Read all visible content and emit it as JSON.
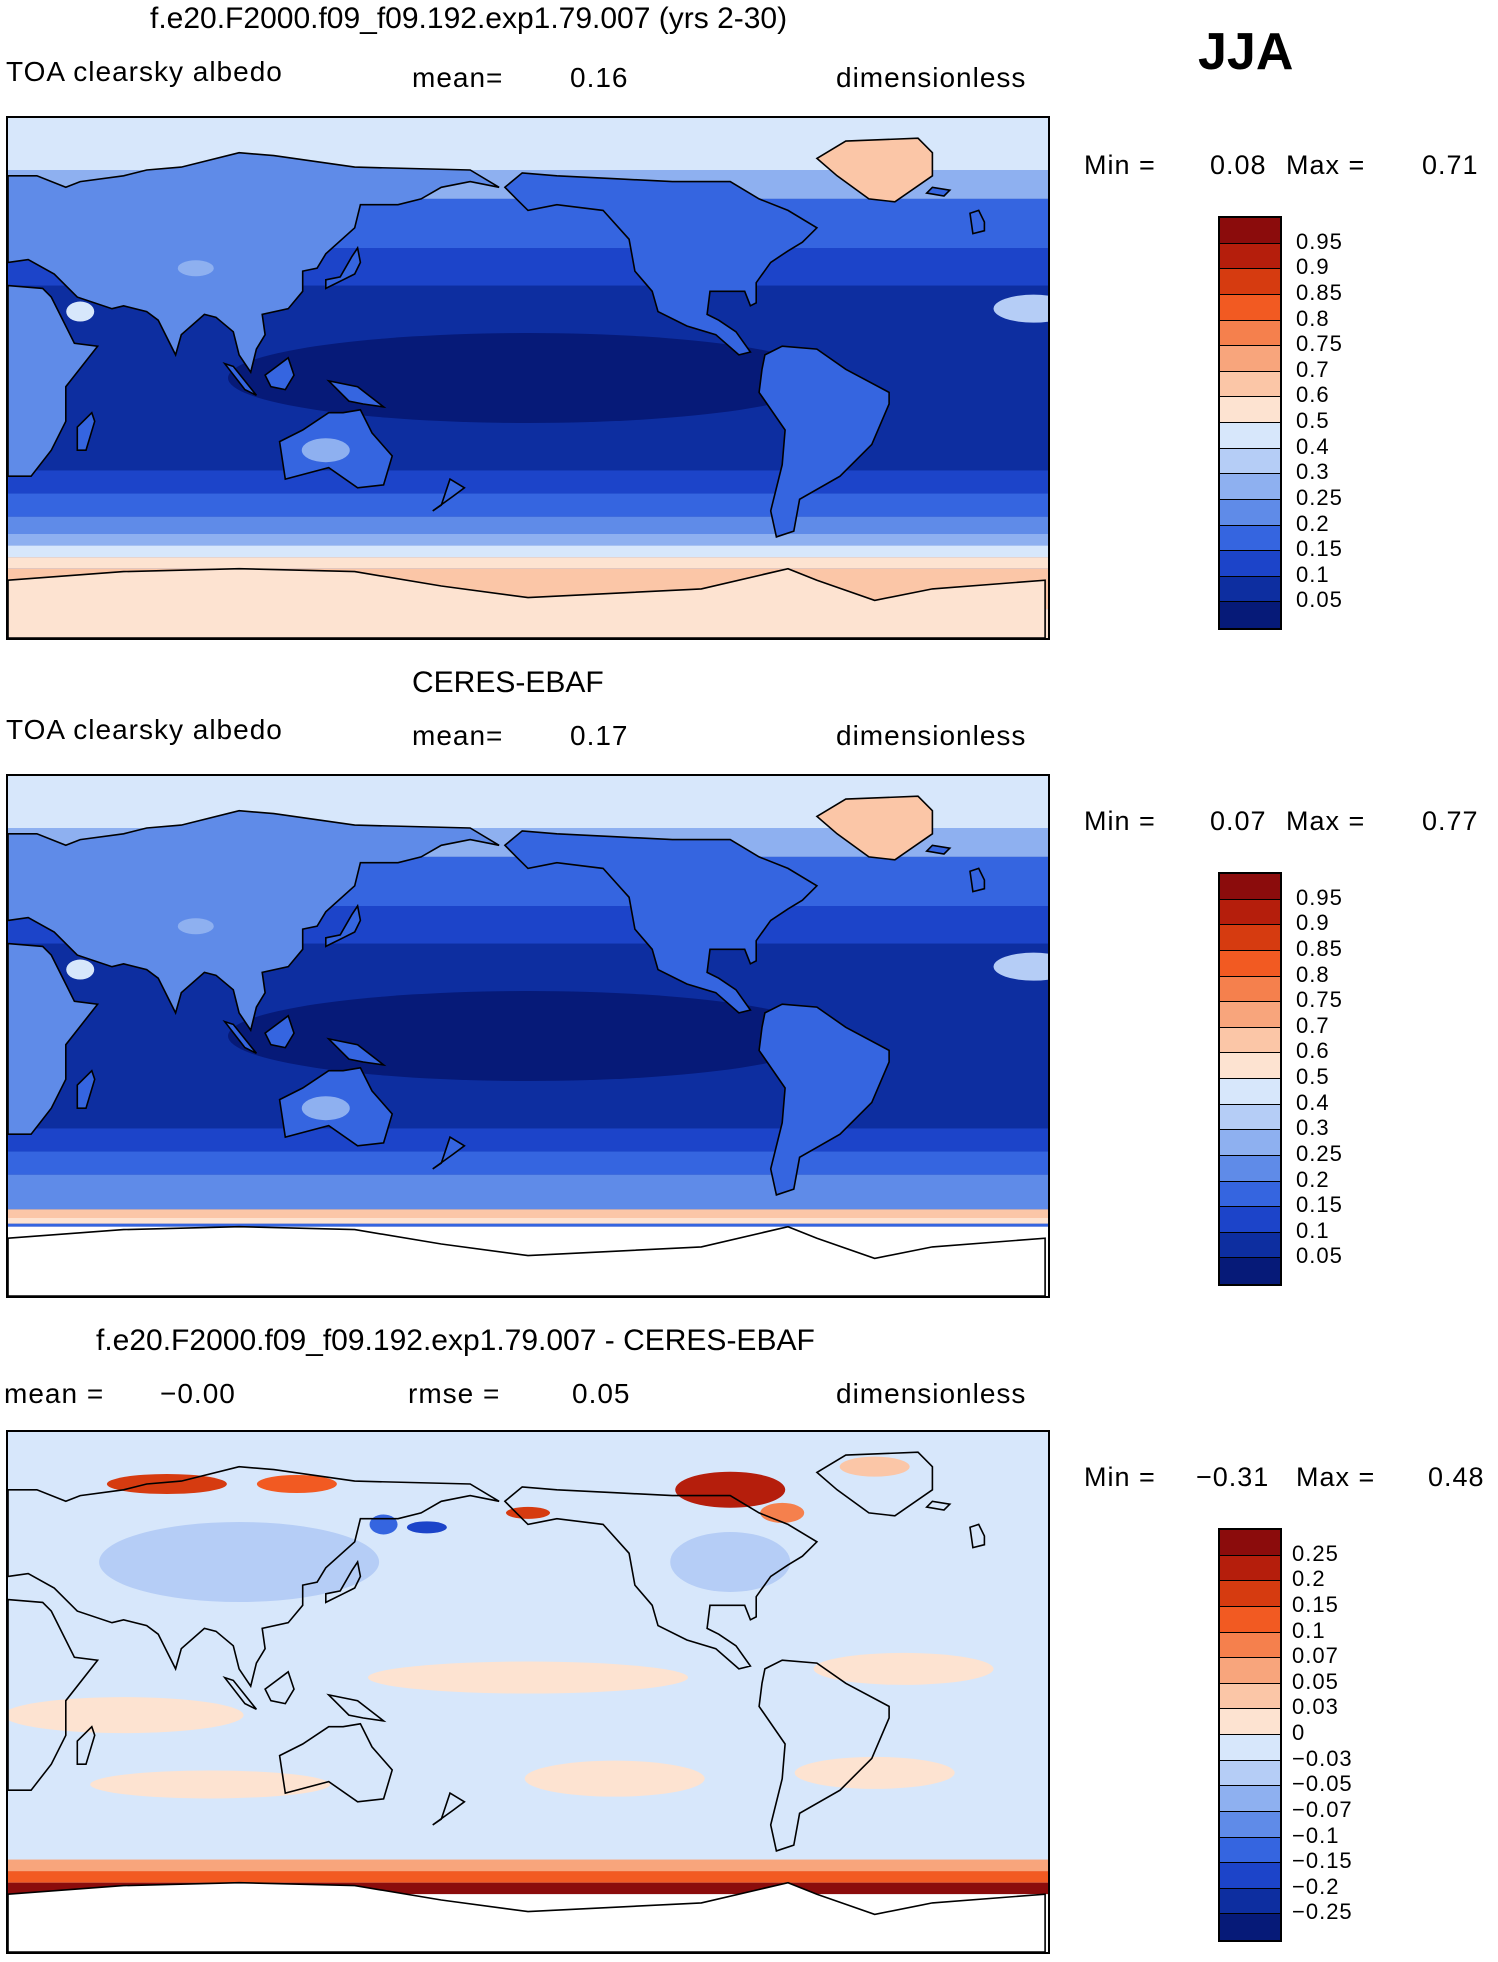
{
  "season": "JJA",
  "panels": [
    {
      "title": "f.e20.F2000.f09_f09.192.exp1.79.007 (yrs 2-30)",
      "left_label": "TOA clearsky albedo",
      "mid_label": "mean=",
      "mid_value": "0.16",
      "right_label": "dimensionless",
      "min_label": "Min =",
      "min_value": "0.08",
      "max_label": "Max =",
      "max_value": "0.71",
      "levels": [
        "0.95",
        "0.9",
        "0.85",
        "0.8",
        "0.75",
        "0.7",
        "0.6",
        "0.5",
        "0.4",
        "0.3",
        "0.25",
        "0.2",
        "0.15",
        "0.1",
        "0.05"
      ],
      "colors": [
        "#8b0c0c",
        "#b51e0c",
        "#d63b10",
        "#f25a22",
        "#f5804d",
        "#f8a57c",
        "#fbc6a7",
        "#fde3d1",
        "#d7e7fb",
        "#b5cdf6",
        "#8eb0f0",
        "#5f8be8",
        "#3565e0",
        "#1c44c9",
        "#0d2ea0",
        "#061a78"
      ],
      "map_type": "abs"
    },
    {
      "title": "CERES-EBAF",
      "left_label": "TOA clearsky albedo",
      "mid_label": "mean=",
      "mid_value": "0.17",
      "right_label": "dimensionless",
      "min_label": "Min =",
      "min_value": "0.07",
      "max_label": "Max =",
      "max_value": "0.77",
      "levels": [
        "0.95",
        "0.9",
        "0.85",
        "0.8",
        "0.75",
        "0.7",
        "0.6",
        "0.5",
        "0.4",
        "0.3",
        "0.25",
        "0.2",
        "0.15",
        "0.1",
        "0.05"
      ],
      "colors": [
        "#8b0c0c",
        "#b51e0c",
        "#d63b10",
        "#f25a22",
        "#f5804d",
        "#f8a57c",
        "#fbc6a7",
        "#fde3d1",
        "#d7e7fb",
        "#b5cdf6",
        "#8eb0f0",
        "#5f8be8",
        "#3565e0",
        "#1c44c9",
        "#0d2ea0",
        "#061a78"
      ],
      "map_type": "obs"
    },
    {
      "title": "f.e20.F2000.f09_f09.192.exp1.79.007 - CERES-EBAF",
      "left_label": "mean =",
      "left_value": "−0.00",
      "mid_label": "rmse =",
      "mid_value": "0.05",
      "right_label": "dimensionless",
      "min_label": "Min =",
      "min_value": "−0.31",
      "max_label": "Max =",
      "max_value": "0.48",
      "levels": [
        "0.25",
        "0.2",
        "0.15",
        "0.1",
        "0.07",
        "0.05",
        "0.03",
        "0",
        "−0.03",
        "−0.05",
        "−0.07",
        "−0.1",
        "−0.15",
        "−0.2",
        "−0.25"
      ],
      "colors": [
        "#8b0c0c",
        "#b51e0c",
        "#d63b10",
        "#f25a22",
        "#f5804d",
        "#f8a57c",
        "#fbc6a7",
        "#fde3d1",
        "#d7e7fb",
        "#b5cdf6",
        "#8eb0f0",
        "#5f8be8",
        "#3565e0",
        "#1c44c9",
        "#0d2ea0",
        "#061a78"
      ],
      "map_type": "diff"
    }
  ]
}
